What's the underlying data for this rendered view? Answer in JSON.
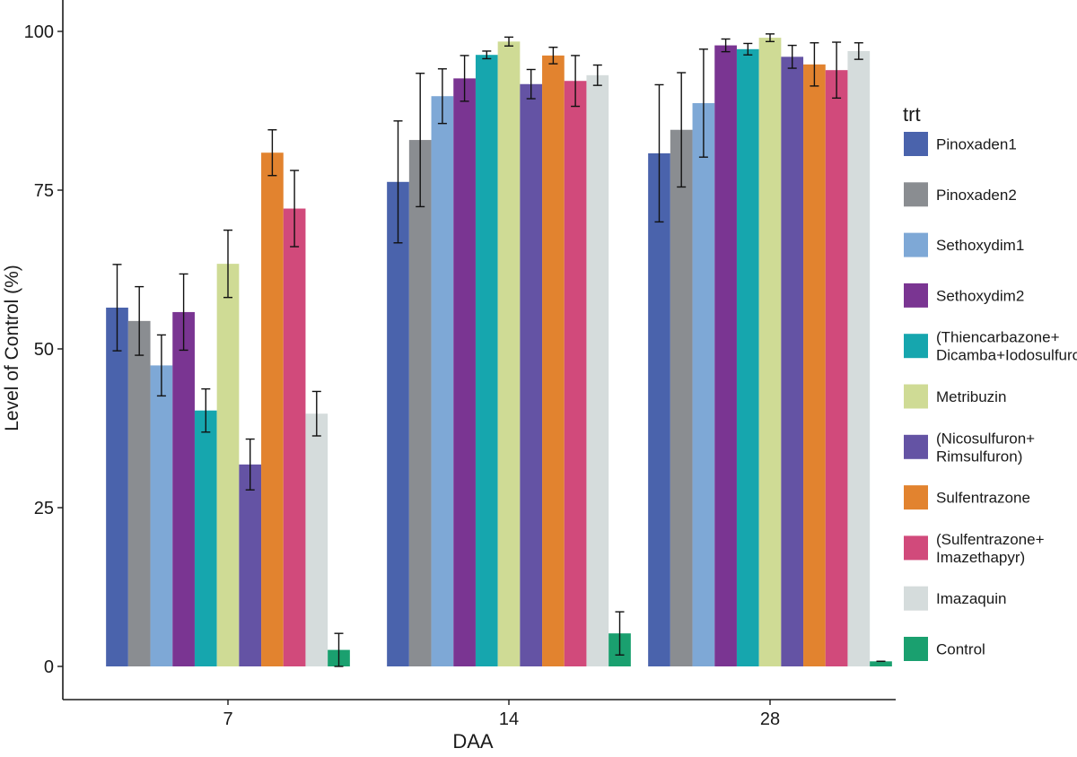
{
  "chart_data": {
    "type": "bar",
    "title": "",
    "xlabel": "DAA",
    "ylabel": "Level of Control (%)",
    "ylim": [
      0,
      105
    ],
    "yticks": [
      0,
      25,
      50,
      75,
      100
    ],
    "categories": [
      "7",
      "14",
      "28"
    ],
    "grid": false,
    "legend": {
      "title": "trt",
      "position": "right"
    },
    "series": [
      {
        "name": "Pinoxaden1",
        "color": "#4a63ac",
        "values": [
          56.5,
          76.3,
          80.8
        ],
        "error": [
          6.8,
          9.6,
          10.8
        ]
      },
      {
        "name": "Pinoxaden2",
        "color": "#8a8d91",
        "values": [
          54.4,
          82.9,
          84.5
        ],
        "error": [
          5.4,
          10.5,
          9.0
        ]
      },
      {
        "name": "Sethoxydim1",
        "color": "#7ea8d6",
        "values": [
          47.4,
          89.8,
          88.7
        ],
        "error": [
          4.8,
          4.3,
          8.5
        ]
      },
      {
        "name": "Sethoxydim2",
        "color": "#7a3592",
        "values": [
          55.8,
          92.6,
          97.8
        ],
        "error": [
          6.0,
          3.6,
          1.0
        ]
      },
      {
        "name": "(Thiencarbazone+\nDicamba+Iodosulfuron)",
        "color": "#16a6ae",
        "values": [
          40.3,
          96.3,
          97.2
        ],
        "error": [
          3.4,
          0.6,
          0.9
        ]
      },
      {
        "name": "Metribuzin",
        "color": "#cfdb95",
        "values": [
          63.4,
          98.4,
          99.0
        ],
        "error": [
          5.3,
          0.7,
          0.6
        ]
      },
      {
        "name": "(Nicosulfuron+\nRimsulfuron)",
        "color": "#6453a4",
        "values": [
          31.8,
          91.7,
          96.0
        ],
        "error": [
          4.0,
          2.3,
          1.8
        ]
      },
      {
        "name": "Sulfentrazone",
        "color": "#e2832f",
        "values": [
          80.9,
          96.2,
          94.8
        ],
        "error": [
          3.6,
          1.3,
          3.4
        ]
      },
      {
        "name": "(Sulfentrazone+\nImazethapyr)",
        "color": "#d14a7b",
        "values": [
          72.1,
          92.2,
          93.9
        ],
        "error": [
          6.0,
          4.0,
          4.4
        ]
      },
      {
        "name": "Imazaquin",
        "color": "#d5dcdc",
        "values": [
          39.8,
          93.1,
          96.9
        ],
        "error": [
          3.5,
          1.6,
          1.3
        ]
      },
      {
        "name": "Control",
        "color": "#1aa06f",
        "values": [
          2.6,
          5.2,
          0.8
        ],
        "error": [
          2.6,
          3.4,
          0.0
        ]
      }
    ]
  }
}
